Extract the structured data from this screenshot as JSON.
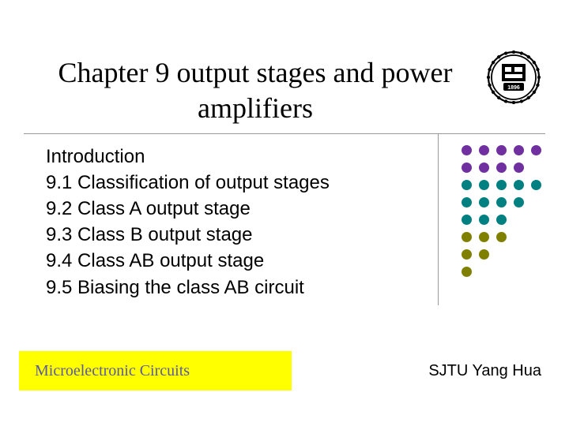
{
  "title": "Chapter 9  output stages and power amplifiers",
  "logo": {
    "year": "1896"
  },
  "content_items": [
    "Introduction",
    "9.1 Classification of output stages",
    "9.2 Class A output stage",
    "9.3 Class B output stage",
    "9.4 Class AB output stage",
    "9.5 Biasing the class AB circuit"
  ],
  "dot_colors": {
    "purple": "#7030a0",
    "teal": "#008080",
    "olive": "#808000"
  },
  "dot_layout": [
    [
      "purple",
      "purple",
      "purple",
      "purple",
      "purple"
    ],
    [
      "purple",
      "purple",
      "purple",
      "purple",
      null
    ],
    [
      "teal",
      "teal",
      "teal",
      "teal",
      "teal"
    ],
    [
      "teal",
      "teal",
      "teal",
      "teal",
      null
    ],
    [
      "teal",
      "teal",
      "teal",
      null,
      null
    ],
    [
      "olive",
      "olive",
      "olive",
      null,
      null
    ],
    [
      "olive",
      "olive",
      null,
      null,
      null
    ],
    [
      "olive",
      null,
      null,
      null,
      null
    ]
  ],
  "footer": {
    "left": "Microelectronic Circuits",
    "right": "SJTU  Yang Hua"
  },
  "colors": {
    "yellow_bar": "#ffff00",
    "footer_left_text": "#5b5b9b",
    "line_color": "#999999"
  }
}
